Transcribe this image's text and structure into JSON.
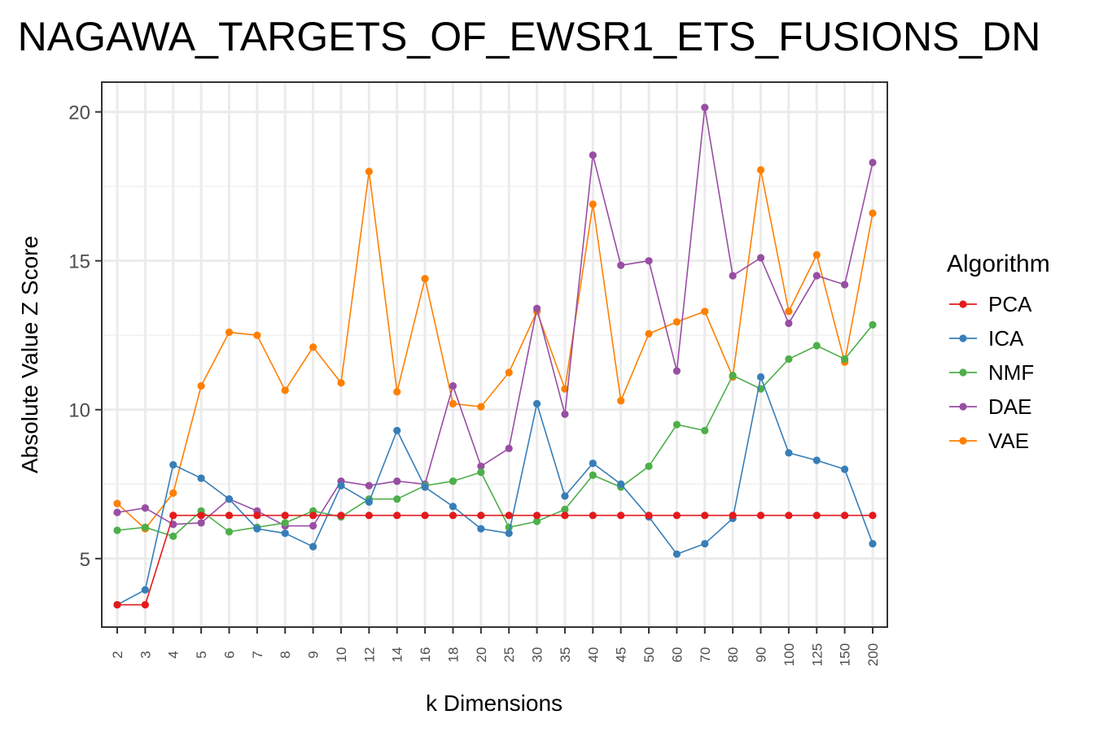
{
  "chart_data": {
    "type": "line",
    "title": "NAGAWA_TARGETS_OF_EWSR1_ETS_FUSIONS_DN",
    "xlabel": "k Dimensions",
    "ylabel": "Absolute Value Z Score",
    "ylim": [
      2.7,
      21.0
    ],
    "yticks": [
      5,
      10,
      15,
      20
    ],
    "grid": true,
    "legend_position": "right",
    "legend_title": "Algorithm",
    "categories": [
      "2",
      "3",
      "4",
      "5",
      "6",
      "7",
      "8",
      "9",
      "10",
      "12",
      "14",
      "16",
      "18",
      "20",
      "25",
      "30",
      "35",
      "40",
      "45",
      "50",
      "60",
      "70",
      "80",
      "90",
      "100",
      "125",
      "150",
      "200"
    ],
    "series": [
      {
        "name": "PCA",
        "color": "#e41a1c",
        "values": [
          3.45,
          3.45,
          6.45,
          6.45,
          6.45,
          6.45,
          6.45,
          6.45,
          6.45,
          6.45,
          6.45,
          6.45,
          6.45,
          6.45,
          6.45,
          6.45,
          6.45,
          6.45,
          6.45,
          6.45,
          6.45,
          6.45,
          6.45,
          6.45,
          6.45,
          6.45,
          6.45,
          6.45
        ]
      },
      {
        "name": "ICA",
        "color": "#377eb8",
        "values": [
          3.45,
          3.95,
          8.15,
          7.7,
          7.0,
          6.0,
          5.85,
          5.4,
          7.45,
          6.9,
          9.3,
          7.4,
          6.75,
          6.0,
          5.85,
          10.2,
          7.1,
          8.2,
          7.5,
          6.4,
          5.15,
          5.5,
          6.35,
          11.1,
          8.55,
          8.3,
          8.0,
          5.5
        ]
      },
      {
        "name": "NMF",
        "color": "#4daf4a",
        "values": [
          5.95,
          6.05,
          5.75,
          6.6,
          5.9,
          6.05,
          6.2,
          6.6,
          6.4,
          7.0,
          7.0,
          7.45,
          7.6,
          7.9,
          6.05,
          6.25,
          6.65,
          7.8,
          7.4,
          8.1,
          9.5,
          9.3,
          11.15,
          10.7,
          11.7,
          12.15,
          11.7,
          12.85
        ]
      },
      {
        "name": "DAE",
        "color": "#984ea3",
        "values": [
          6.55,
          6.7,
          6.15,
          6.2,
          7.0,
          6.6,
          6.1,
          6.1,
          7.6,
          7.45,
          7.6,
          7.5,
          10.8,
          8.1,
          8.7,
          13.4,
          9.85,
          18.55,
          14.85,
          15.0,
          11.3,
          20.15,
          14.5,
          15.1,
          12.9,
          14.5,
          14.2,
          18.3
        ]
      },
      {
        "name": "VAE",
        "color": "#ff7f00",
        "values": [
          6.85,
          6.0,
          7.2,
          10.8,
          12.6,
          12.5,
          10.65,
          12.1,
          10.9,
          18.0,
          10.6,
          14.4,
          10.2,
          10.1,
          11.25,
          13.3,
          10.7,
          16.9,
          10.3,
          12.55,
          12.95,
          13.3,
          11.1,
          18.05,
          13.3,
          15.2,
          11.6,
          16.6
        ]
      }
    ]
  }
}
